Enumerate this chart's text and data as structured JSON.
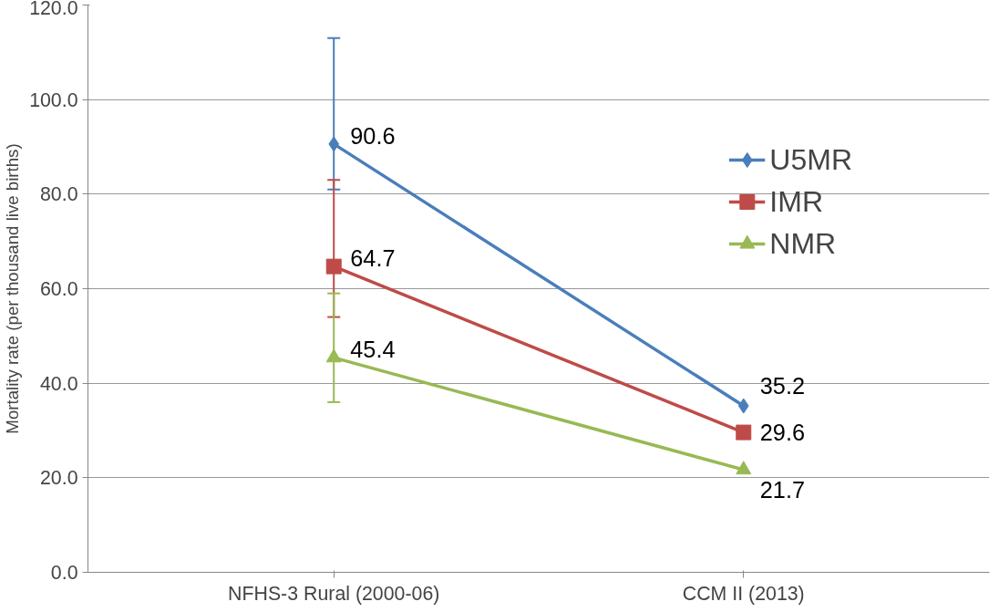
{
  "chart_data": {
    "type": "line",
    "ylabel": "Mortality rate (per thousand live births)",
    "categories": [
      "NFHS-3 Rural (2000-06)",
      "CCM II (2013)"
    ],
    "series": [
      {
        "name": "U5MR",
        "color": "#4a7ebb",
        "values": [
          90.6,
          35.2
        ],
        "marker": "diamond",
        "errors": [
          [
            81,
            113
          ],
          null
        ]
      },
      {
        "name": "IMR",
        "color": "#be4b48",
        "values": [
          64.7,
          29.6
        ],
        "marker": "square",
        "errors": [
          [
            54,
            83
          ],
          null
        ]
      },
      {
        "name": "NMR",
        "color": "#98b954",
        "values": [
          45.4,
          21.7
        ],
        "marker": "triangle",
        "errors": [
          [
            36,
            59
          ],
          null
        ]
      }
    ],
    "ylim": [
      0,
      120
    ],
    "yticks": [
      {
        "value": 0,
        "label": "0.0"
      },
      {
        "value": 20,
        "label": "20.0"
      },
      {
        "value": 40,
        "label": "40.0"
      },
      {
        "value": 60,
        "label": "60.0"
      },
      {
        "value": 80,
        "label": "80.0"
      },
      {
        "value": 100,
        "label": "100.0"
      },
      {
        "value": 120,
        "label": "120.0"
      }
    ],
    "grid": "y",
    "legend": "top right",
    "data_labels": true
  }
}
